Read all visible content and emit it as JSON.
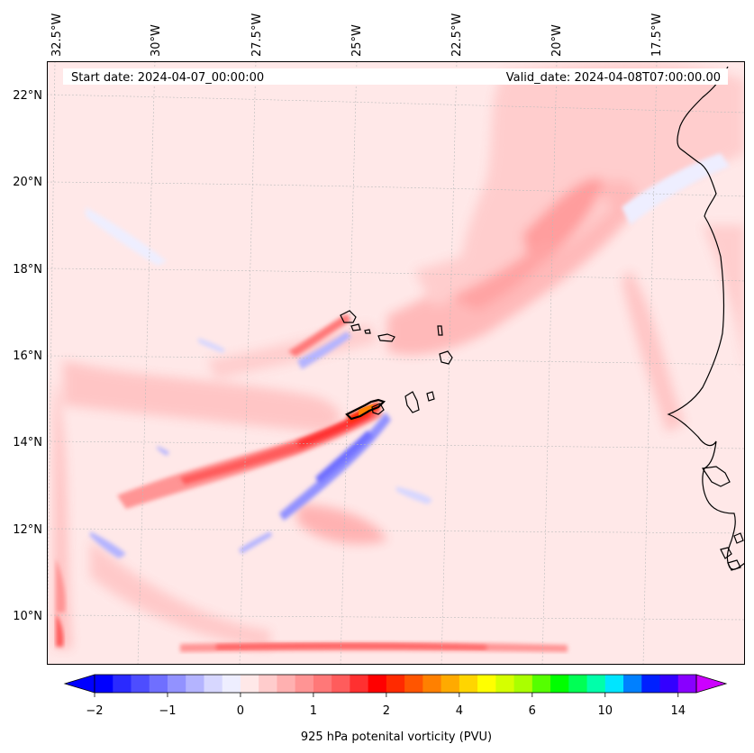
{
  "map": {
    "start_date": "Start date: 2024-04-07_00:00:00",
    "valid_date": "Valid_date: 2024-04-08T07:00:00.00",
    "lon_labels": [
      "32.5°W",
      "30°W",
      "27.5°W",
      "25°W",
      "22.5°W",
      "20°W",
      "17.5°W"
    ],
    "lat_labels": [
      "22°N",
      "20°N",
      "18°N",
      "16°N",
      "14°N",
      "12°N",
      "10°N"
    ],
    "extent": {
      "lon_min": -33.0,
      "lon_max": -15.5,
      "lat_min": 8.8,
      "lat_max": 22.8
    },
    "colors": {
      "background_field": "#ffe8e8",
      "coastline": "#000000",
      "grid": "#bbbbbb"
    }
  },
  "colorbar": {
    "label": "925 hPa potenital vorticity (PVU)",
    "ticks": [
      "−2",
      "−1",
      "0",
      "1",
      "2",
      "4",
      "6",
      "10",
      "14"
    ],
    "colors": [
      "#0000ff",
      "#2a2aff",
      "#4d4dff",
      "#6f6fff",
      "#9292ff",
      "#b4b4ff",
      "#d7d7ff",
      "#eeeeff",
      "#ffe8e8",
      "#ffcccc",
      "#ffb0b0",
      "#ff9494",
      "#ff7878",
      "#ff5c5c",
      "#ff3030",
      "#ff0000",
      "#ff2a00",
      "#ff5500",
      "#ff8000",
      "#ffaa00",
      "#ffd500",
      "#ffff00",
      "#d5ff00",
      "#aaff00",
      "#55ff00",
      "#00ff00",
      "#00ff55",
      "#00ffaa",
      "#00e5ff",
      "#0080ff",
      "#0020ff",
      "#3300ff",
      "#8800ff"
    ],
    "extend_low_color": "#0000ff",
    "extend_high_color": "#cc00ff"
  }
}
